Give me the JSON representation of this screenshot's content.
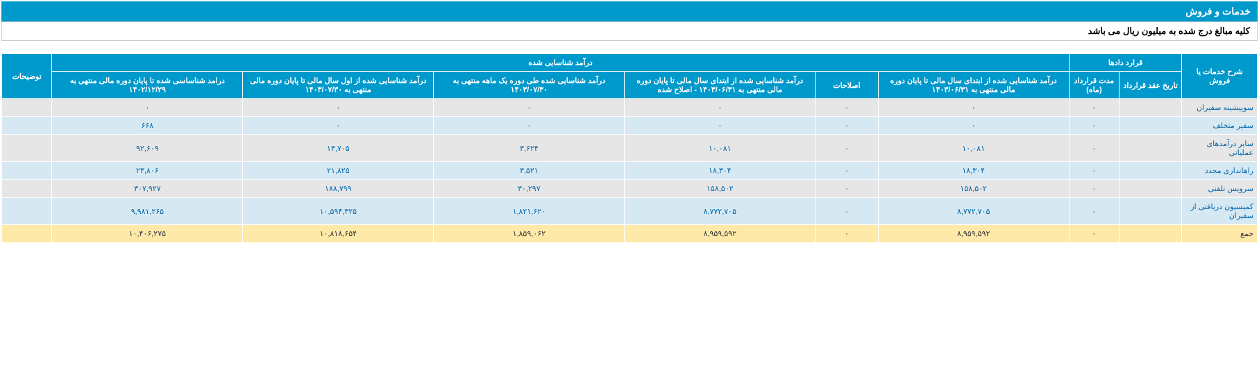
{
  "title": "خدمات و فروش",
  "subtitle": "کلیه مبالغ درج شده به میلیون ریال می باشد",
  "headers": {
    "service_or_sale": "شرح خدمات یا فروش",
    "contracts": "قرارد دادها",
    "contract_date": "تاریخ عقد قرارداد",
    "contract_duration": "مدت قرارداد (ماه)",
    "recognized_income": "درآمد شناسایی شده",
    "income_start_to_end_0631": "درآمد شناسایی شده از ابتدای سال مالی تا پایان دوره مالی منتهی به ۱۴۰۳/۰۶/۳۱",
    "adjustments": "اصلاحات",
    "income_start_to_end_adjusted": "درآمد شناسایی شده از ابتدای سال مالی تا پایان دوره مالی منتهی به ۱۴۰۳/۰۶/۳۱ - اصلاح شده",
    "income_period_one_month": "درآمد شناسایی شده طی دوره یک ماهه منتهی به ۱۴۰۳/۰۷/۳۰",
    "income_first_to_end_0730": "درآمد شناسایی شده از اول سال مالی تا پایان دوره مالی منتهی به ۱۴۰۳/۰۷/۳۰",
    "income_to_end_1229": "درامد شناساسی شده تا پایان دوره مالی منتهی به ۱۴۰۲/۱۲/۲۹",
    "notes": "توضیحات"
  },
  "rows": [
    {
      "label": "سوپیشینه سفیران",
      "contract_date": "",
      "contract_duration": "۰",
      "inc_0631": "۰",
      "adjustments": "۰",
      "inc_adjusted": "۰",
      "inc_one_month": "۰",
      "inc_0730": "۰",
      "inc_1229": "۰",
      "notes": ""
    },
    {
      "label": "سفیر متخلف",
      "contract_date": "",
      "contract_duration": "۰",
      "inc_0631": "۰",
      "adjustments": "۰",
      "inc_adjusted": "۰",
      "inc_one_month": "۰",
      "inc_0730": "۰",
      "inc_1229": "۶۶۸",
      "notes": ""
    },
    {
      "label": "سایر درآمدهای عملیاتی",
      "contract_date": "",
      "contract_duration": "۰",
      "inc_0631": "۱۰,۰۸۱",
      "adjustments": "۰",
      "inc_adjusted": "۱۰,۰۸۱",
      "inc_one_month": "۳,۶۲۴",
      "inc_0730": "۱۳,۷۰۵",
      "inc_1229": "۹۲,۶۰۹",
      "notes": ""
    },
    {
      "label": "راهاندازی مجدد",
      "contract_date": "",
      "contract_duration": "۰",
      "inc_0631": "۱۸,۳۰۴",
      "adjustments": "۰",
      "inc_adjusted": "۱۸,۳۰۴",
      "inc_one_month": "۳,۵۲۱",
      "inc_0730": "۲۱,۸۲۵",
      "inc_1229": "۲۳,۸۰۶",
      "notes": ""
    },
    {
      "label": "سرویس تلفنی",
      "contract_date": "",
      "contract_duration": "۰",
      "inc_0631": "۱۵۸,۵۰۲",
      "adjustments": "۰",
      "inc_adjusted": "۱۵۸,۵۰۲",
      "inc_one_month": "۳۰,۲۹۷",
      "inc_0730": "۱۸۸,۷۹۹",
      "inc_1229": "۳۰۷,۹۲۷",
      "notes": ""
    },
    {
      "label": "کمیسیون دریافتی از سفیران",
      "contract_date": "",
      "contract_duration": "۰",
      "inc_0631": "۸,۷۷۲,۷۰۵",
      "adjustments": "۰",
      "inc_adjusted": "۸,۷۷۲,۷۰۵",
      "inc_one_month": "۱,۸۲۱,۶۲۰",
      "inc_0730": "۱۰,۵۹۴,۳۲۵",
      "inc_1229": "۹,۹۸۱,۲۶۵",
      "notes": ""
    }
  ],
  "total": {
    "label": "جمع",
    "contract_date": "",
    "contract_duration": "۰",
    "inc_0631": "۸,۹۵۹,۵۹۲",
    "adjustments": "۰",
    "inc_adjusted": "۸,۹۵۹,۵۹۲",
    "inc_one_month": "۱,۸۵۹,۰۶۲",
    "inc_0730": "۱۰,۸۱۸,۶۵۴",
    "inc_1229": "۱۰,۴۰۶,۲۷۵",
    "notes": ""
  }
}
